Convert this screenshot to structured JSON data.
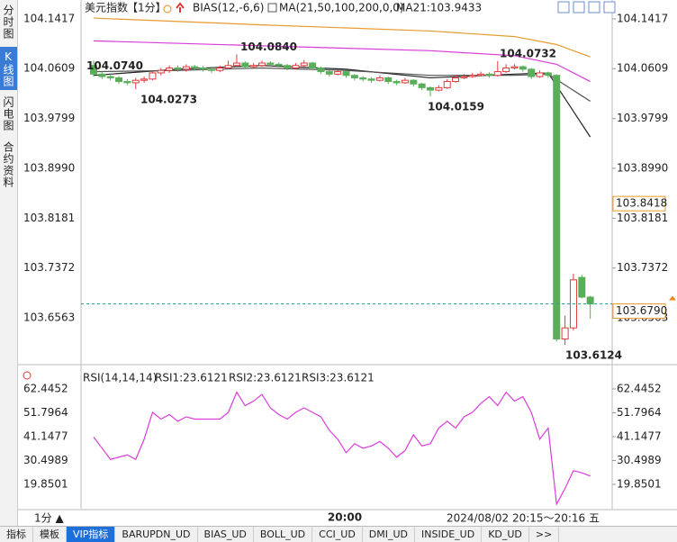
{
  "sidebar": [
    "分时图",
    "K线图",
    "闪电图",
    "合约资料"
  ],
  "chart_data": {
    "type": "candlestick",
    "legend_items": [
      "美元指数",
      "【1分】",
      "BIAS(12,-6,6)",
      "MA(21,50,100,200,0,0)",
      "MA21:103.9433"
    ],
    "ylim": [
      103.5906,
      104.1548
    ],
    "yticks": [
      104.1417,
      104.0609,
      103.9799,
      {
        "value": 103.899,
        "label": "103.8990"
      },
      103.8181,
      103.7372,
      103.6563
    ],
    "up_color": "#e03a3a",
    "down_color": "#5aae5a",
    "candles": [
      [
        104.066,
        104.074,
        104.048,
        104.052
      ],
      [
        104.052,
        104.056,
        104.044,
        104.048
      ],
      [
        104.048,
        104.052,
        104.042,
        104.046
      ],
      [
        104.046,
        104.049,
        104.036,
        104.04
      ],
      [
        104.04,
        104.044,
        104.034,
        104.038
      ],
      [
        104.038,
        104.046,
        104.0273,
        104.042
      ],
      [
        104.042,
        104.048,
        104.038,
        104.044
      ],
      [
        104.044,
        104.058,
        104.042,
        104.054
      ],
      [
        104.054,
        104.062,
        104.05,
        104.058
      ],
      [
        104.058,
        104.066,
        104.054,
        104.062
      ],
      [
        104.062,
        104.066,
        104.056,
        104.06
      ],
      [
        104.06,
        104.068,
        104.056,
        104.064
      ],
      [
        104.064,
        104.067,
        104.058,
        104.062
      ],
      [
        104.062,
        104.065,
        104.056,
        104.06
      ],
      [
        104.06,
        104.063,
        104.054,
        104.058
      ],
      [
        104.058,
        104.066,
        104.055,
        104.062
      ],
      [
        104.062,
        104.074,
        104.06,
        104.066
      ],
      [
        104.066,
        104.084,
        104.064,
        104.07
      ],
      [
        104.07,
        104.073,
        104.06,
        104.064
      ],
      [
        104.064,
        104.07,
        104.062,
        104.066
      ],
      [
        104.066,
        104.074,
        104.064,
        104.07
      ],
      [
        104.07,
        104.073,
        104.065,
        104.068
      ],
      [
        104.068,
        104.071,
        104.063,
        104.066
      ],
      [
        104.066,
        104.069,
        104.058,
        104.062
      ],
      [
        104.062,
        104.07,
        104.06,
        104.066
      ],
      [
        104.066,
        104.075,
        104.064,
        104.07
      ],
      [
        104.07,
        104.072,
        104.058,
        104.062
      ],
      [
        104.062,
        104.064,
        104.052,
        104.056
      ],
      [
        104.056,
        104.058,
        104.048,
        104.052
      ],
      [
        104.052,
        104.06,
        104.05,
        104.056
      ],
      [
        104.056,
        104.058,
        104.046,
        104.05
      ],
      [
        104.05,
        104.052,
        104.042,
        104.046
      ],
      [
        104.046,
        104.049,
        104.04,
        104.044
      ],
      [
        104.044,
        104.047,
        104.038,
        104.042
      ],
      [
        104.042,
        104.05,
        104.04,
        104.046
      ],
      [
        104.046,
        104.048,
        104.036,
        104.04
      ],
      [
        104.04,
        104.043,
        104.034,
        104.038
      ],
      [
        104.038,
        104.046,
        104.036,
        104.042
      ],
      [
        104.042,
        104.044,
        104.032,
        104.036
      ],
      [
        104.036,
        104.038,
        104.026,
        104.03
      ],
      [
        104.03,
        104.032,
        104.0159,
        104.026
      ],
      [
        104.026,
        104.034,
        104.024,
        104.03
      ],
      [
        104.03,
        104.044,
        104.028,
        104.04
      ],
      [
        104.04,
        104.05,
        104.038,
        104.046
      ],
      [
        104.046,
        104.052,
        104.044,
        104.048
      ],
      [
        104.048,
        104.054,
        104.046,
        104.05
      ],
      [
        104.05,
        104.056,
        104.048,
        104.052
      ],
      [
        104.052,
        104.055,
        104.046,
        104.05
      ],
      [
        104.05,
        104.0732,
        104.048,
        104.056
      ],
      [
        104.056,
        104.068,
        104.054,
        104.062
      ],
      [
        104.062,
        104.068,
        104.06,
        104.064
      ],
      [
        104.064,
        104.066,
        104.056,
        104.06
      ],
      [
        104.06,
        104.062,
        104.044,
        104.048
      ],
      [
        104.048,
        104.058,
        104.046,
        104.054
      ],
      [
        104.054,
        104.056,
        104.046,
        104.05
      ],
      [
        104.05,
        104.052,
        103.618,
        103.622
      ],
      [
        103.622,
        103.66,
        103.6124,
        103.64
      ],
      [
        103.64,
        103.728,
        103.636,
        103.718
      ],
      [
        103.722,
        103.726,
        103.688,
        103.69
      ],
      [
        103.69,
        103.692,
        103.655,
        103.679
      ]
    ],
    "ma_lines": [
      {
        "color": "#e89a2c",
        "x": [
          0,
          20,
          40,
          50,
          55,
          59
        ],
        "values": [
          104.143,
          104.132,
          104.122,
          104.113,
          104.1,
          104.08
        ]
      },
      {
        "color": "#d93cd9",
        "x": [
          0,
          20,
          40,
          50,
          55,
          59
        ],
        "values": [
          104.106,
          104.098,
          104.09,
          104.082,
          104.068,
          104.04
        ]
      },
      {
        "color": "#222222",
        "x": [
          0,
          10,
          20,
          30,
          40,
          50,
          54,
          59
        ],
        "values": [
          104.05,
          104.06,
          104.066,
          104.06,
          104.046,
          104.052,
          104.054,
          103.95
        ]
      },
      {
        "color": "#555555",
        "x": [
          0,
          10,
          20,
          30,
          40,
          50,
          54,
          59
        ],
        "values": [
          104.056,
          104.058,
          104.062,
          104.058,
          104.05,
          104.05,
          104.052,
          104.008
        ]
      }
    ],
    "annotations": [
      {
        "value": 104.074,
        "label": "104.0740",
        "color": "#e03a3a"
      },
      {
        "value": 104.0273,
        "label": "104.0273",
        "color": "#4a9e4a"
      },
      {
        "value": 104.084,
        "label": "104.0840",
        "color": "#e03a3a"
      },
      {
        "value": 104.0159,
        "label": "104.0159",
        "color": "#4a9e4a"
      },
      {
        "value": 104.0732,
        "label": "104.0732",
        "color": "#e03a3a"
      },
      {
        "value": 103.6124,
        "label": "103.6124",
        "color": "#4a9e4a"
      }
    ],
    "marker_price": 103.8418,
    "current_price": {
      "value": 103.679,
      "label": "103.6790"
    },
    "rsi": {
      "title": "RSI(14,14,14)",
      "items": [
        {
          "label": "RSI1:23.6121",
          "color": "#222222"
        },
        {
          "label": "RSI2:23.6121",
          "color": "#2244cc"
        },
        {
          "label": "RSI3:23.6121",
          "color": "#d93cd9"
        }
      ],
      "ylim": [
        9,
        69.28
      ],
      "yticks": [
        62.4452,
        51.7964,
        41.1477,
        30.4989,
        19.8501
      ],
      "color": "#d93cd9",
      "values": [
        41,
        36,
        31,
        32,
        33,
        31,
        40,
        52,
        49,
        51,
        48,
        50,
        49,
        49,
        49,
        49,
        52,
        61,
        55,
        57,
        60,
        54,
        51,
        49,
        52,
        54,
        52,
        50,
        44,
        40,
        34,
        38,
        36,
        37,
        39,
        36,
        32,
        35,
        42,
        37,
        38,
        45,
        48,
        45,
        50,
        52,
        56,
        59,
        55,
        61,
        57,
        59,
        52,
        40,
        45,
        11,
        18,
        26,
        25,
        23.6121
      ]
    },
    "period": "1分 ▲",
    "time_label": "20:00",
    "range_label": "2024/08/02 20:15～20:16 五"
  },
  "tabs": [
    "指标",
    "模板",
    "VIP指标",
    "BARUPDN_UD",
    "BIAS_UD",
    "BOLL_UD",
    "CCI_UD",
    "DMI_UD",
    "INSIDE_UD",
    "KD_UD",
    ">>"
  ]
}
